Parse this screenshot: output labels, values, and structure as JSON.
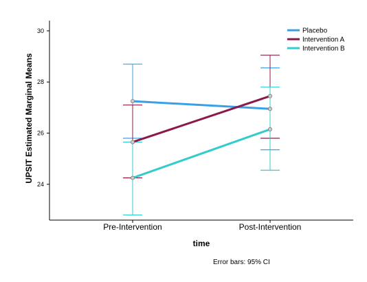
{
  "chart_data": {
    "type": "line",
    "title": "",
    "xlabel": "time",
    "ylabel": "UPSIT Estimated Marginal Means",
    "categories": [
      "Pre-Intervention",
      "Post-Intervention"
    ],
    "ylim": [
      22.6,
      30.4
    ],
    "yticks": [
      "24",
      "26",
      "28",
      "30"
    ],
    "grid": false,
    "legend_position": "top-right",
    "footnote": "Error bars: 95% CI",
    "series": [
      {
        "name": "Placebo",
        "color": "#3aa0e6",
        "values": [
          27.25,
          26.95
        ],
        "ci_low": [
          25.8,
          25.35
        ],
        "ci_high": [
          28.7,
          28.55
        ]
      },
      {
        "name": "Intervention A",
        "color": "#8b1a4a",
        "values": [
          25.65,
          27.45
        ],
        "ci_low": [
          24.25,
          25.8
        ],
        "ci_high": [
          27.1,
          29.05
        ]
      },
      {
        "name": "Intervention B",
        "color": "#33cccc",
        "values": [
          24.25,
          26.15
        ],
        "ci_low": [
          22.8,
          24.55
        ],
        "ci_high": [
          25.65,
          27.8
        ]
      }
    ]
  }
}
